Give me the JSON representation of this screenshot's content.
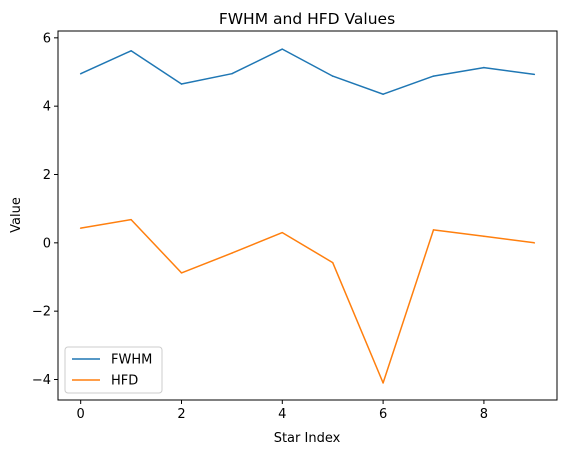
{
  "chart_data": {
    "type": "line",
    "title": "FWHM and HFD Values",
    "xlabel": "Star Index",
    "ylabel": "Value",
    "xlim": [
      -0.45,
      9.45
    ],
    "ylim": [
      -4.6,
      6.2
    ],
    "x": [
      0,
      1,
      2,
      3,
      4,
      5,
      6,
      7,
      8,
      9
    ],
    "xticks": [
      0,
      2,
      4,
      6,
      8
    ],
    "yticks": [
      -4,
      -2,
      0,
      2,
      4,
      6
    ],
    "grid": false,
    "legend_position": "lower-left",
    "series": [
      {
        "name": "FWHM",
        "color": "#1f77b4",
        "values": [
          4.95,
          5.62,
          4.65,
          4.95,
          5.67,
          4.88,
          4.35,
          4.88,
          5.13,
          4.93
        ]
      },
      {
        "name": "HFD",
        "color": "#ff7f0e",
        "values": [
          0.43,
          0.68,
          -0.88,
          -0.3,
          0.3,
          -0.58,
          -4.1,
          0.38,
          0.19,
          0.0
        ]
      }
    ]
  }
}
